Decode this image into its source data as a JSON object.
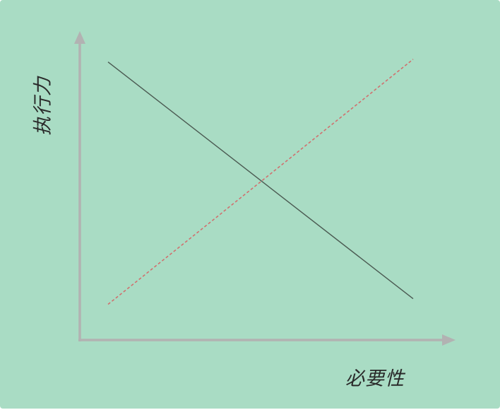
{
  "colors": {
    "background": "#a9dcc4",
    "axis": "#b2b2b2",
    "series_solid": "#4b5a52",
    "series_dashed": "#d0706e"
  },
  "chart_data": {
    "type": "line",
    "title": "",
    "xlabel": "必要性",
    "ylabel": "执行力",
    "xlim": [
      0,
      1
    ],
    "ylim": [
      0,
      1
    ],
    "grid": false,
    "legend": "none",
    "series": [
      {
        "style": "solid",
        "color": "#4b5a52",
        "x": [
          0.0,
          1.0
        ],
        "y": [
          0.95,
          0.1
        ]
      },
      {
        "style": "dashed",
        "color": "#d0706e",
        "x": [
          0.0,
          1.0
        ],
        "y": [
          0.08,
          0.96
        ]
      }
    ]
  }
}
